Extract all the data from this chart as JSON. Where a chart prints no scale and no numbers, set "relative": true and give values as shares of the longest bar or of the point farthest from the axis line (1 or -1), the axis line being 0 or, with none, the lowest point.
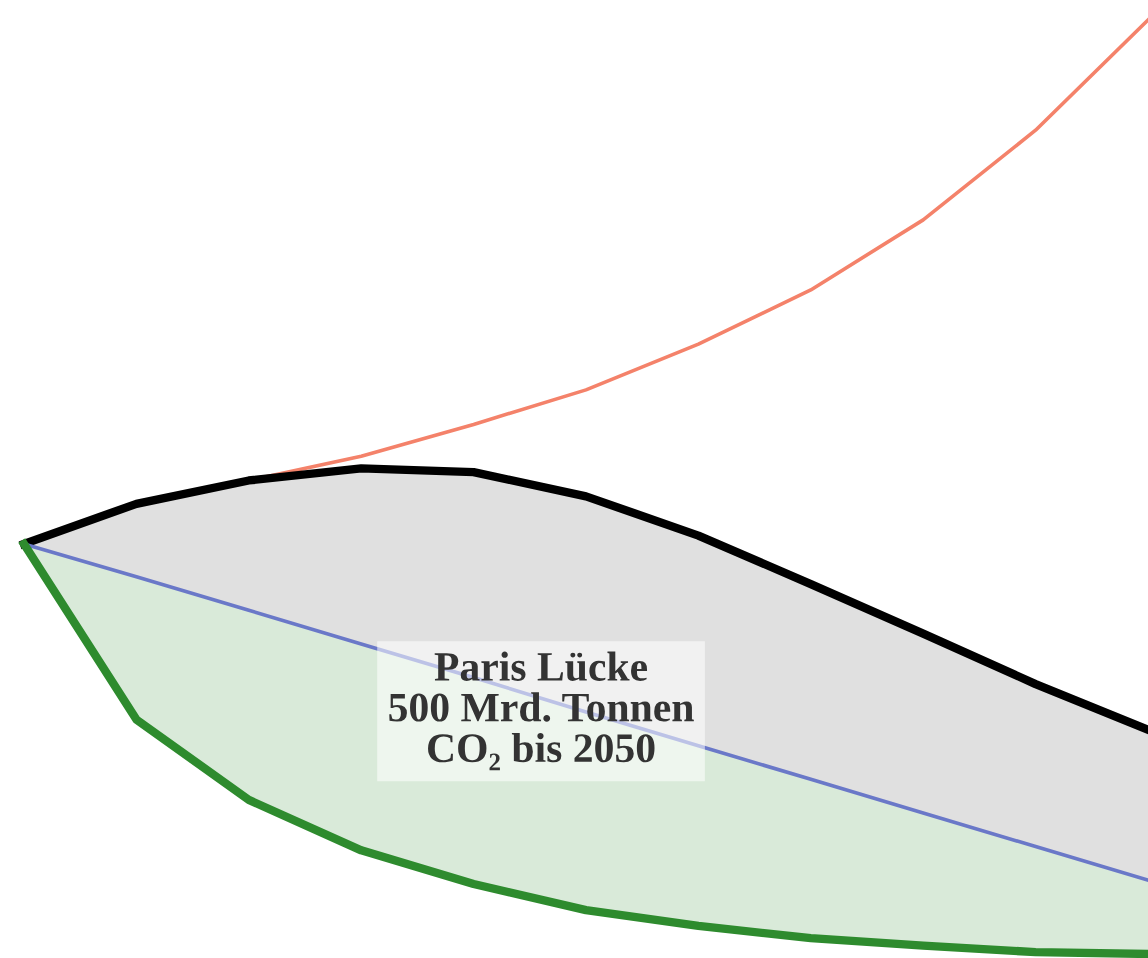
{
  "chart_data": {
    "type": "line",
    "relative": true,
    "categories": [
      null,
      null,
      null,
      null,
      null,
      null,
      null,
      null,
      null,
      null,
      null
    ],
    "series": [
      {
        "color": "#f4826a",
        "values": [
          null,
          null,
          0.507,
          0.533,
          0.567,
          0.604,
          0.653,
          0.711,
          0.786,
          0.882,
          1
        ]
      },
      {
        "type": "area",
        "color": "#000000",
        "values": [
          0.439,
          0.482,
          0.507,
          0.52,
          0.516,
          0.49,
          0.448,
          0.396,
          0.343,
          0.289,
          0.24
        ]
      },
      {
        "color": "#6a78c8",
        "values": [
          0.439,
          0.404,
          0.368,
          0.332,
          0.296,
          0.259,
          0.223,
          0.187,
          0.151,
          0.115,
          0.079
        ]
      },
      {
        "color": "#2e8b2e",
        "values": [
          0.439,
          0.251,
          0.165,
          0.111,
          0.075,
          0.047,
          0.03,
          0.017,
          0.009,
          0.002,
          0
        ]
      }
    ],
    "annotations": [
      "Paris Lücke\n500 Mrd. Tonnen\nCO₂ bis 2050"
    ]
  }
}
